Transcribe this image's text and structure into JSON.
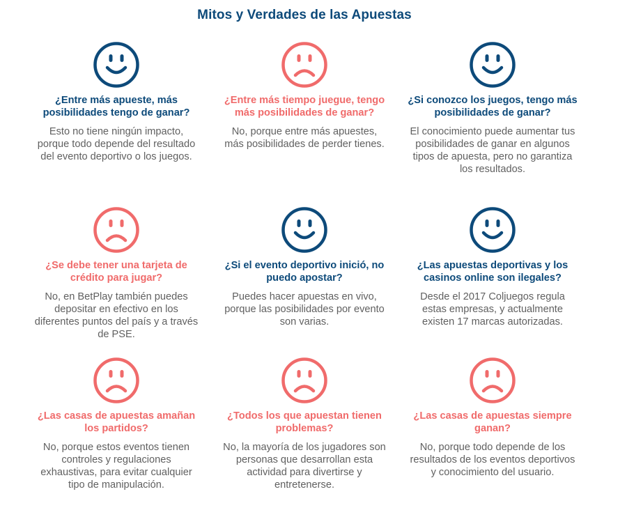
{
  "page": {
    "title": "Mitos y Verdades de las Apuestas"
  },
  "colors": {
    "truth": "#0d4a7a",
    "myth": "#f06b6b",
    "answer_text": "#606060"
  },
  "items": [
    {
      "face": "happy-face-icon",
      "kind": "truth",
      "question": "¿Entre más apueste, más posibilidades tengo de ganar?",
      "answer": "Esto no tiene ningún impacto, porque todo depende del resultado del evento deportivo o los juegos."
    },
    {
      "face": "sad-face-icon",
      "kind": "myth",
      "question": "¿Entre más tiempo juegue, tengo más posibilidades de ganar?",
      "answer": "No, porque entre más apuestes, más posibilidades de perder tienes."
    },
    {
      "face": "happy-face-icon",
      "kind": "truth",
      "question": "¿Si conozco los juegos, tengo más posibilidades de ganar?",
      "answer": "El conocimiento puede aumentar tus posibilidades de ganar en algunos tipos de apuesta, pero no garantiza los resultados."
    },
    {
      "face": "sad-face-icon",
      "kind": "myth",
      "question": "¿Se debe tener una tarjeta de crédito para jugar?",
      "answer": "No, en BetPlay también puedes depositar en efectivo en los diferentes puntos del país y a través de PSE."
    },
    {
      "face": "happy-face-icon",
      "kind": "truth",
      "question": "¿Si el evento deportivo inició, no puedo apostar?",
      "answer": "Puedes hacer apuestas en vivo, porque las posibilidades por evento son varias."
    },
    {
      "face": "happy-face-icon",
      "kind": "truth",
      "question": "¿Las apuestas deportivas y los casinos online son ilegales?",
      "answer": "Desde el 2017 Coljuegos regula estas empresas, y actualmente existen 17 marcas autorizadas."
    },
    {
      "face": "sad-face-icon",
      "kind": "myth",
      "question": "¿Las casas de apuestas amañan los partidos?",
      "answer": "No, porque estos eventos tienen controles y regulaciones exhaustivas, para evitar cualquier tipo de manipulación."
    },
    {
      "face": "sad-face-icon",
      "kind": "myth",
      "question": "¿Todos los que apuestan tienen problemas?",
      "answer": "No, la mayoría de los jugadores son personas que desarrollan esta actividad para divertirse y entretenerse."
    },
    {
      "face": "sad-face-icon",
      "kind": "myth",
      "question": "¿Las casas de apuestas siempre ganan?",
      "answer": "No, porque todo depende de los resultados de los eventos deportivos y conocimiento del usuario."
    }
  ]
}
